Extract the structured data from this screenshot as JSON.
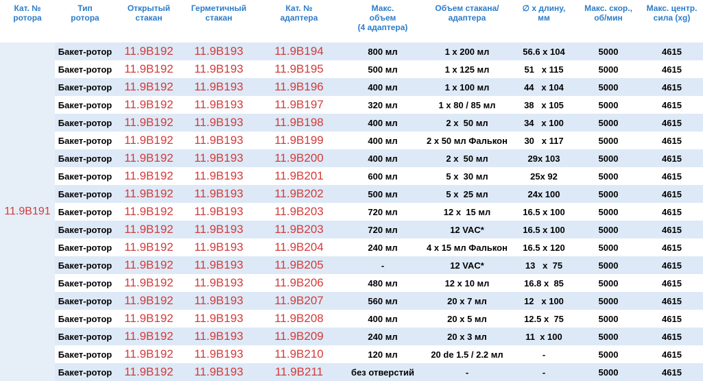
{
  "table": {
    "header": [
      "Кат. №\nротора",
      "Тип\nротора",
      "Открытый\nстакан",
      "Герметичный\nстакан",
      "Кат. №\nадаптера",
      "Макс.\nобъем\n(4 адаптера)",
      "Объем стакана/\nадаптера",
      "∅ x длину,\nмм",
      "Макс. скор.,\nоб/мин",
      "Макс. центр.\nсила (xg)"
    ],
    "rotor": "11.9B191",
    "rows": [
      [
        "Бакет-ротор",
        "11.9B192",
        "11.9B193",
        "11.9B194",
        "800 мл",
        "1 x 200 мл",
        "56.6 x 104",
        "5000",
        "4615"
      ],
      [
        "Бакет-ротор",
        "11.9B192",
        "11.9B193",
        "11.9B195",
        "500 мл",
        "1 x 125 мл",
        "51   x 115",
        "5000",
        "4615"
      ],
      [
        "Бакет-ротор",
        "11.9B192",
        "11.9B193",
        "11.9B196",
        "400 мл",
        "1 x 100 мл",
        "44   x 104",
        "5000",
        "4615"
      ],
      [
        "Бакет-ротор",
        "11.9B192",
        "11.9B193",
        "11.9B197",
        "320 мл",
        "1 x 80 / 85 мл",
        "38   x 105",
        "5000",
        "4615"
      ],
      [
        "Бакет-ротор",
        "11.9B192",
        "11.9B193",
        "11.9B198",
        "400 мл",
        "2 x  50 мл",
        "34   x 100",
        "5000",
        "4615"
      ],
      [
        "Бакет-ротор",
        "11.9B192",
        "11.9B193",
        "11.9B199",
        "400 мл",
        "2 x 50 мл Фалькон",
        "30   x 117",
        "5000",
        "4615"
      ],
      [
        "Бакет-ротор",
        "11.9B192",
        "11.9B193",
        "11.9B200",
        "400 мл",
        "2 x  50 мл",
        "29x 103",
        "5000",
        "4615"
      ],
      [
        "Бакет-ротор",
        "11.9B192",
        "11.9B193",
        "11.9B201",
        "600 мл",
        "5 x  30 мл",
        "25x 92",
        "5000",
        "4615"
      ],
      [
        "Бакет-ротор",
        "11.9B192",
        "11.9B193",
        "11.9B202",
        "500 мл",
        "5 x  25 мл",
        "24x 100",
        "5000",
        "4615"
      ],
      [
        "Бакет-ротор",
        "11.9B192",
        "11.9B193",
        "11.9B203",
        "720 мл",
        "12 x  15 мл",
        "16.5 x 100",
        "5000",
        "4615"
      ],
      [
        "Бакет-ротор",
        "11.9B192",
        "11.9B193",
        "11.9B203",
        "720 мл",
        "12 VAC*",
        "16.5 x 100",
        "5000",
        "4615"
      ],
      [
        "Бакет-ротор",
        "11.9B192",
        "11.9B193",
        "11.9B204",
        "240 мл",
        "4 x 15 мл Фалькон",
        "16.5 x 120",
        "5000",
        "4615"
      ],
      [
        "Бакет-ротор",
        "11.9B192",
        "11.9B193",
        "11.9B205",
        "-",
        "12 VAC*",
        "13   x  75",
        "5000",
        "4615"
      ],
      [
        "Бакет-ротор",
        "11.9B192",
        "11.9B193",
        "11.9B206",
        "480 мл",
        "12 x 10 мл",
        "16.8 x  85",
        "5000",
        "4615"
      ],
      [
        "Бакет-ротор",
        "11.9B192",
        "11.9B193",
        "11.9B207",
        "560 мл",
        "20 x 7 мл",
        "12   x 100",
        "5000",
        "4615"
      ],
      [
        "Бакет-ротор",
        "11.9B192",
        "11.9B193",
        "11.9B208",
        "400 мл",
        "20 x 5 мл",
        "12.5 x  75",
        "5000",
        "4615"
      ],
      [
        "Бакет-ротор",
        "11.9B192",
        "11.9B193",
        "11.9B209",
        "240 мл",
        "20 x 3 мл",
        "11  x 100",
        "5000",
        "4615"
      ],
      [
        "Бакет-ротор",
        "11.9B192",
        "11.9B193",
        "11.9B210",
        "120 мл",
        "20 de 1.5 / 2.2 мл",
        "-",
        "5000",
        "4615"
      ],
      [
        "Бакет-ротор",
        "11.9B192",
        "11.9B193",
        "11.9B211",
        "без отверстий",
        "-",
        "-",
        "5000",
        "4615"
      ]
    ]
  }
}
